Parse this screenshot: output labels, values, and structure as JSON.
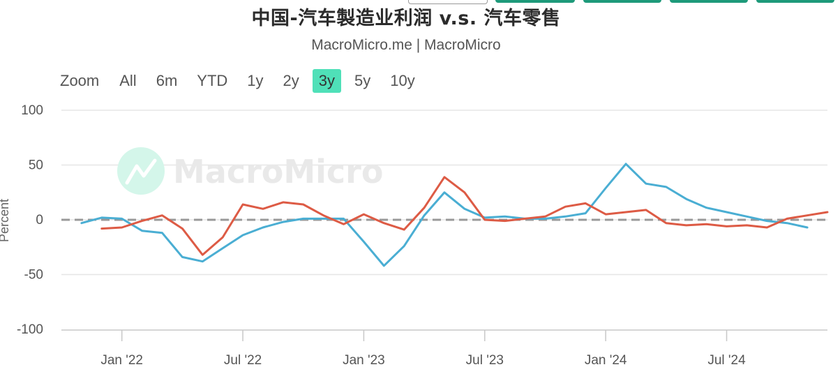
{
  "title": "中国-汽车製造业利润 v.s. 汽车零售",
  "subtitle": "MacroMicro.me | MacroMicro",
  "range_selector": {
    "label": "Zoom",
    "buttons": [
      "All",
      "6m",
      "YTD",
      "1y",
      "2y",
      "3y",
      "5y",
      "10y"
    ],
    "active": "3y"
  },
  "watermark": "MacroMicro",
  "colors": {
    "series_blue": "#4aaed3",
    "series_red": "#dd5b45",
    "zero_line": "#999999",
    "active_button": "#4fe0b8",
    "top_tabs": "#1e9a7a"
  },
  "chart_data": {
    "type": "line",
    "title": "中国-汽车製造业利润 v.s. 汽车零售",
    "subtitle": "MacroMicro.me | MacroMicro",
    "ylabel": "Percent",
    "ylim": [
      -100,
      100
    ],
    "y_ticks": [
      100,
      50,
      0,
      -50,
      -100
    ],
    "x_ticks": [
      "Jan '22",
      "Jul '22",
      "Jan '23",
      "Jul '23",
      "Jan '24",
      "Jul '24"
    ],
    "xlim": [
      "2021-10",
      "2024-12"
    ],
    "grid": "horizontal",
    "reference_line": {
      "y": 0,
      "style": "dashed"
    },
    "x": [
      "2021-11",
      "2021-12",
      "2022-01",
      "2022-02",
      "2022-03",
      "2022-04",
      "2022-05",
      "2022-06",
      "2022-07",
      "2022-08",
      "2022-09",
      "2022-10",
      "2022-11",
      "2022-12",
      "2023-01",
      "2023-02",
      "2023-03",
      "2023-04",
      "2023-05",
      "2023-06",
      "2023-07",
      "2023-08",
      "2023-09",
      "2023-10",
      "2023-11",
      "2023-12",
      "2024-01",
      "2024-02",
      "2024-03",
      "2024-04",
      "2024-05",
      "2024-06",
      "2024-07",
      "2024-08",
      "2024-09",
      "2024-10",
      "2024-11",
      "2024-12"
    ],
    "series": [
      {
        "values": [
          -3,
          2,
          1,
          -10,
          -12,
          -34,
          -38,
          -26,
          -14,
          -7,
          -2,
          1,
          1,
          1,
          -20,
          -42,
          -24,
          4,
          25,
          10,
          2,
          3,
          1,
          1,
          3,
          6,
          29,
          51,
          33,
          30,
          19,
          11,
          7,
          3,
          -1,
          -3,
          -7,
          null
        ]
      },
      {
        "values": [
          null,
          -8,
          -7,
          -1,
          4,
          -8,
          -32,
          -16,
          14,
          10,
          16,
          14,
          4,
          -4,
          5,
          -3,
          -9,
          11,
          39,
          25,
          0,
          -1,
          1,
          3,
          12,
          15,
          5,
          7,
          9,
          -3,
          -5,
          -4,
          -6,
          -5,
          -7,
          1,
          4,
          7
        ]
      }
    ]
  }
}
